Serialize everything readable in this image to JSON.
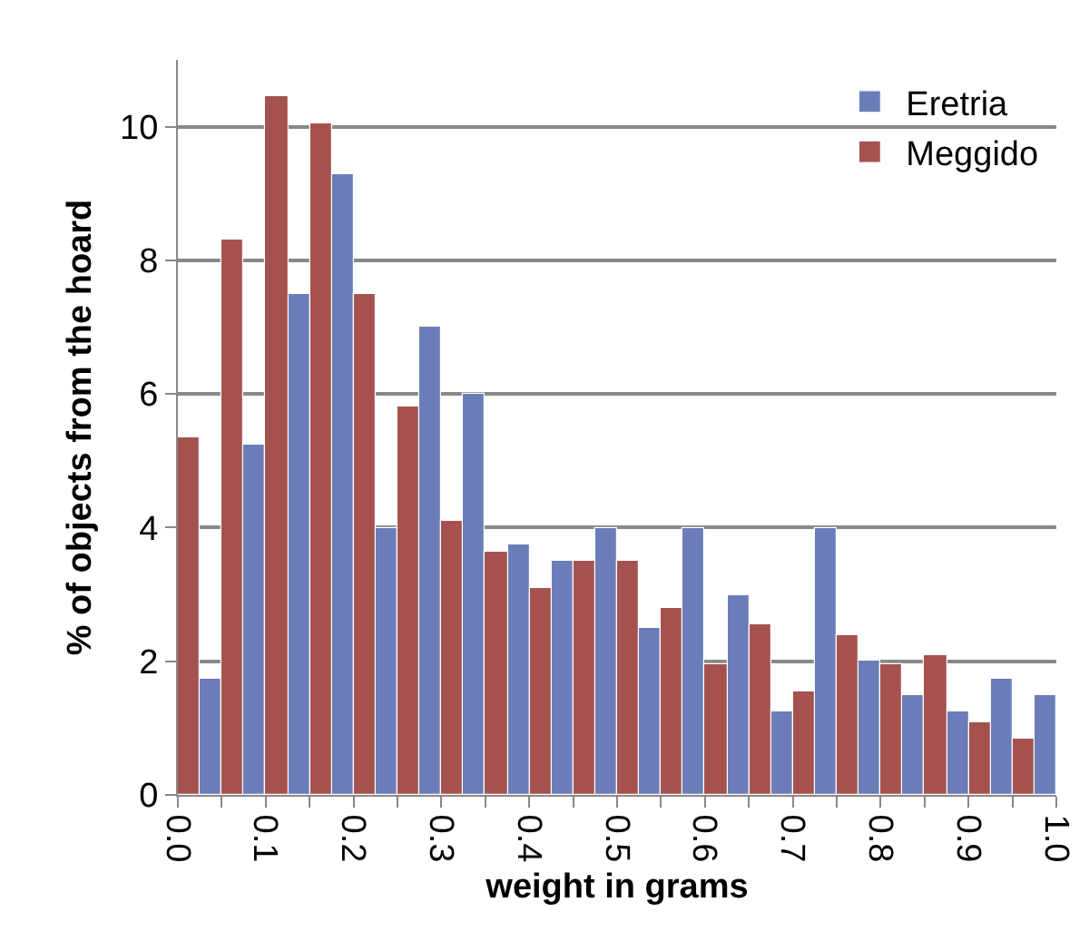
{
  "chart_data": {
    "type": "histogram",
    "xlabel": "weight in grams",
    "ylabel": "% of objects from the hoard",
    "bins": [
      0,
      0.05,
      0.1,
      0.15,
      0.2,
      0.25,
      0.3,
      0.35,
      0.4,
      0.45,
      0.5,
      0.55,
      0.6,
      0.65,
      0.7,
      0.75,
      0.8,
      0.85,
      0.9,
      0.95,
      1.0
    ],
    "series": [
      {
        "name": "Eretria",
        "color": "#6b7db8",
        "values": [
          1.75,
          5.25,
          7.5,
          9.3,
          4.0,
          7.0,
          6.0,
          3.75,
          3.5,
          4.0,
          2.5,
          4.0,
          3.0,
          1.25,
          4.0,
          2.0,
          1.5,
          1.25,
          1.75,
          1.5
        ]
      },
      {
        "name": "Meggido",
        "color": "#a5524f",
        "values": [
          5.35,
          8.3,
          10.45,
          10.05,
          7.5,
          5.8,
          4.1,
          3.65,
          3.1,
          3.5,
          3.5,
          2.8,
          1.95,
          2.55,
          1.55,
          2.4,
          1.95,
          2.1,
          1.1,
          0.85
        ]
      }
    ],
    "xlim": [
      0,
      1
    ],
    "xticks": [
      {
        "value": 0,
        "label": "0.0"
      },
      {
        "value": 0.05,
        "label": null
      },
      {
        "value": 0.1,
        "label": "0.1"
      },
      {
        "value": 0.15,
        "label": null
      },
      {
        "value": 0.2,
        "label": "0.2"
      },
      {
        "value": 0.25,
        "label": null
      },
      {
        "value": 0.3,
        "label": "0.3"
      },
      {
        "value": 0.35,
        "label": null
      },
      {
        "value": 0.4,
        "label": "0.4"
      },
      {
        "value": 0.45,
        "label": null
      },
      {
        "value": 0.5,
        "label": "0.5"
      },
      {
        "value": 0.55,
        "label": null
      },
      {
        "value": 0.6,
        "label": "0.6"
      },
      {
        "value": 0.65,
        "label": null
      },
      {
        "value": 0.7,
        "label": "0.7"
      },
      {
        "value": 0.75,
        "label": null
      },
      {
        "value": 0.8,
        "label": "0.8"
      },
      {
        "value": 0.85,
        "label": null
      },
      {
        "value": 0.9,
        "label": "0.9"
      },
      {
        "value": 0.95,
        "label": null
      },
      {
        "value": 1.0,
        "label": "1.0"
      }
    ],
    "ylim": [
      0,
      11
    ],
    "yticks": [
      0,
      2,
      4,
      6,
      8,
      10
    ],
    "grid": "y",
    "legend": "top right"
  }
}
